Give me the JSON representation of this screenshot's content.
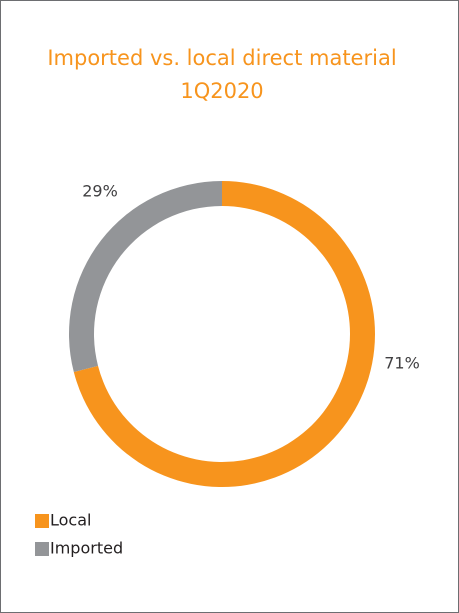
{
  "chart_data": {
    "type": "donut",
    "title": "Imported vs. local direct material",
    "subtitle": "1Q2020",
    "categories": [
      "Local",
      "Imported"
    ],
    "values": [
      71,
      29
    ],
    "value_labels": [
      "71%",
      "29%"
    ],
    "colors": [
      "#f7941d",
      "#939598"
    ],
    "legend": "bottom-left"
  }
}
